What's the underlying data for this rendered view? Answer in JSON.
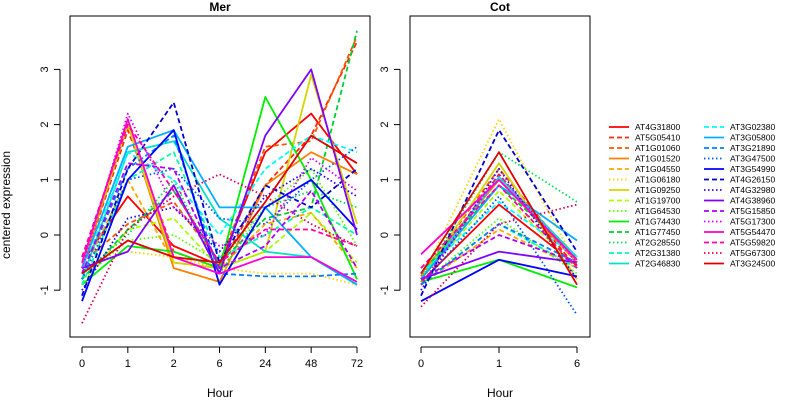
{
  "chart_data": {
    "type": "line",
    "ylabel": "centered expression",
    "yticks": [
      -1,
      0,
      1,
      2,
      3
    ],
    "legend": {
      "placement": "right"
    },
    "panels": [
      {
        "title": "Mer",
        "xlabel": "Hour",
        "categories": [
          "0",
          "1",
          "2",
          "6",
          "24",
          "48",
          "72"
        ],
        "ylim": [
          -1.7,
          3.7
        ]
      },
      {
        "title": "Cot",
        "xlabel": "Hour",
        "categories": [
          "0",
          "1",
          "6"
        ],
        "ylim": [
          -1.7,
          3.7
        ]
      }
    ],
    "series": [
      {
        "name": "AT4G31800",
        "color": "#ff0000",
        "dash": "solid",
        "mer": [
          -0.5,
          0.7,
          -0.2,
          -0.55,
          1.5,
          2.2,
          1.1
        ],
        "cot": [
          -0.85,
          0.55,
          -0.55
        ]
      },
      {
        "name": "AT5G05410",
        "color": "#ff2a00",
        "dash": "dashed",
        "mer": [
          -0.6,
          1.9,
          -0.3,
          -0.6,
          0.9,
          1.8,
          3.5
        ],
        "cot": [
          -0.8,
          1.1,
          -0.6
        ]
      },
      {
        "name": "AT1G01060",
        "color": "#ff5500",
        "dash": "dashed",
        "mer": [
          -0.5,
          0.2,
          0.6,
          -0.5,
          1.6,
          1.7,
          3.6
        ],
        "cot": [
          -0.75,
          1.2,
          -0.5
        ]
      },
      {
        "name": "AT1G01520",
        "color": "#ff8000",
        "dash": "solid",
        "mer": [
          -0.6,
          2.0,
          -0.6,
          -0.85,
          0.9,
          1.5,
          1.1
        ],
        "cot": [
          -0.7,
          1.0,
          -0.5
        ]
      },
      {
        "name": "AT1G04550",
        "color": "#ffaa00",
        "dash": "dashed",
        "mer": [
          -0.7,
          1.0,
          -0.5,
          -0.6,
          0.2,
          0.4,
          -0.6
        ],
        "cot": [
          -0.9,
          0.1,
          -0.6
        ]
      },
      {
        "name": "AT1G06180",
        "color": "#ffd500",
        "dash": "dotted",
        "mer": [
          -0.6,
          -0.3,
          -0.4,
          -0.6,
          -0.7,
          -0.7,
          -0.9
        ],
        "cot": [
          -0.8,
          2.1,
          -0.55
        ]
      },
      {
        "name": "AT1G09250",
        "color": "#d4d400",
        "dash": "solid",
        "mer": [
          -0.5,
          2.0,
          -0.5,
          -0.6,
          -0.3,
          2.9,
          0.2
        ],
        "cot": [
          -0.8,
          1.3,
          -0.8
        ]
      },
      {
        "name": "AT1G19700",
        "color": "#aaff00",
        "dash": "dashed",
        "mer": [
          -0.9,
          0.1,
          0.3,
          -0.6,
          -0.3,
          0.4,
          -0.5
        ],
        "cot": [
          -0.8,
          0.8,
          -0.6
        ]
      },
      {
        "name": "AT1G64530",
        "color": "#55ff00",
        "dash": "dotted",
        "mer": [
          -0.8,
          -0.1,
          0.0,
          -0.5,
          0.5,
          1.2,
          -0.2
        ],
        "cot": [
          -0.9,
          0.3,
          -0.7
        ]
      },
      {
        "name": "AT1G74430",
        "color": "#00ee00",
        "dash": "solid",
        "mer": [
          -0.9,
          -0.2,
          -0.3,
          -0.6,
          2.5,
          1.0,
          -0.8
        ],
        "cot": [
          -0.85,
          -0.45,
          -0.95
        ]
      },
      {
        "name": "AT1G77450",
        "color": "#00cc33",
        "dash": "dashed",
        "mer": [
          -0.8,
          0.1,
          0.8,
          -0.5,
          0.3,
          0.5,
          3.7
        ],
        "cot": [
          -0.7,
          0.9,
          -0.4
        ]
      },
      {
        "name": "AT2G28550",
        "color": "#00e050",
        "dash": "dotted",
        "mer": [
          -0.7,
          0.0,
          1.0,
          -0.7,
          0.5,
          0.8,
          0.5
        ],
        "cot": [
          -0.8,
          1.5,
          0.6
        ]
      },
      {
        "name": "AT2G31380",
        "color": "#00ffaa",
        "dash": "dashed",
        "mer": [
          -0.9,
          1.0,
          1.5,
          -0.4,
          0.0,
          0.5,
          0.0
        ],
        "cot": [
          -0.9,
          0.2,
          -0.6
        ]
      },
      {
        "name": "AT2G46830",
        "color": "#00e0c8",
        "dash": "solid",
        "mer": [
          -0.8,
          1.5,
          1.7,
          0.3,
          -0.3,
          -0.4,
          -0.9
        ],
        "cot": [
          -0.8,
          1.05,
          -0.4
        ]
      },
      {
        "name": "AT3G02380",
        "color": "#00ffff",
        "dash": "dashed",
        "mer": [
          -0.7,
          1.5,
          1.0,
          0.0,
          1.2,
          1.8,
          1.5
        ],
        "cot": [
          -0.7,
          0.6,
          -0.4
        ]
      },
      {
        "name": "AT3G05800",
        "color": "#00b0ff",
        "dash": "solid",
        "mer": [
          -0.6,
          1.6,
          1.9,
          0.5,
          0.5,
          -0.4,
          -0.9
        ],
        "cot": [
          -0.8,
          0.9,
          -0.1
        ]
      },
      {
        "name": "AT3G21890",
        "color": "#0080ff",
        "dash": "dashed",
        "mer": [
          -0.7,
          1.2,
          1.8,
          -0.7,
          -0.75,
          -0.75,
          -0.7
        ],
        "cot": [
          -0.9,
          0.2,
          -0.5
        ]
      },
      {
        "name": "AT3G47500",
        "color": "#0055ff",
        "dash": "dotted",
        "mer": [
          -0.8,
          1.0,
          1.2,
          0.3,
          0.2,
          1.0,
          1.6
        ],
        "cot": [
          -0.9,
          0.7,
          -1.45
        ]
      },
      {
        "name": "AT3G54990",
        "color": "#0000ff",
        "dash": "solid",
        "mer": [
          -1.2,
          1.0,
          1.9,
          -0.9,
          0.5,
          1.0,
          0.1
        ],
        "cot": [
          -1.2,
          -0.45,
          -0.75
        ]
      },
      {
        "name": "AT4G26150",
        "color": "#0000cc",
        "dash": "dashed",
        "mer": [
          -1.1,
          1.2,
          2.4,
          -0.5,
          0.9,
          0.5,
          1.2
        ],
        "cot": [
          -1.1,
          1.9,
          -0.3
        ]
      },
      {
        "name": "AT4G32980",
        "color": "#2a00ff",
        "dash": "dotted",
        "mer": [
          -1.0,
          0.3,
          0.5,
          -0.3,
          0.7,
          1.2,
          0.7
        ],
        "cot": [
          -1.0,
          1.2,
          -0.8
        ]
      },
      {
        "name": "AT4G38960",
        "color": "#8000ff",
        "dash": "solid",
        "mer": [
          -0.6,
          -0.3,
          0.9,
          -0.7,
          1.8,
          3.0,
          0.0
        ],
        "cot": [
          -0.8,
          -0.3,
          -0.5
        ]
      },
      {
        "name": "AT5G15850",
        "color": "#b000ff",
        "dash": "dashed",
        "mer": [
          -0.7,
          1.3,
          1.2,
          -0.6,
          -0.2,
          0.8,
          -0.6
        ],
        "cot": [
          -0.8,
          0.0,
          -0.5
        ]
      },
      {
        "name": "AT5G17300",
        "color": "#d500ff",
        "dash": "dotted",
        "mer": [
          -0.6,
          2.2,
          0.5,
          -0.2,
          0.0,
          1.4,
          0.8
        ],
        "cot": [
          -0.9,
          1.1,
          -0.5
        ]
      },
      {
        "name": "AT5G54470",
        "color": "#ff00d4",
        "dash": "solid",
        "mer": [
          -0.5,
          2.1,
          -0.4,
          -0.7,
          -0.4,
          -0.4,
          -0.85
        ],
        "cot": [
          -0.35,
          1.0,
          -0.45
        ]
      },
      {
        "name": "AT5G59820",
        "color": "#ff00aa",
        "dash": "dashed",
        "mer": [
          -0.4,
          2.0,
          0.8,
          -0.5,
          0.1,
          0.1,
          -0.2
        ],
        "cot": [
          -0.6,
          0.9,
          -0.6
        ]
      },
      {
        "name": "AT5G67300",
        "color": "#e0005a",
        "dash": "dotted",
        "mer": [
          -1.6,
          0.1,
          0.7,
          1.1,
          0.7,
          0.2,
          -0.2
        ],
        "cot": [
          -1.3,
          0.2,
          0.55
        ]
      },
      {
        "name": "AT3G24500",
        "color": "#e00000",
        "dash": "solid",
        "mer": [
          -0.7,
          -0.1,
          -0.4,
          -0.5,
          0.6,
          1.8,
          1.3
        ],
        "cot": [
          -0.7,
          1.5,
          -0.9
        ]
      }
    ]
  }
}
